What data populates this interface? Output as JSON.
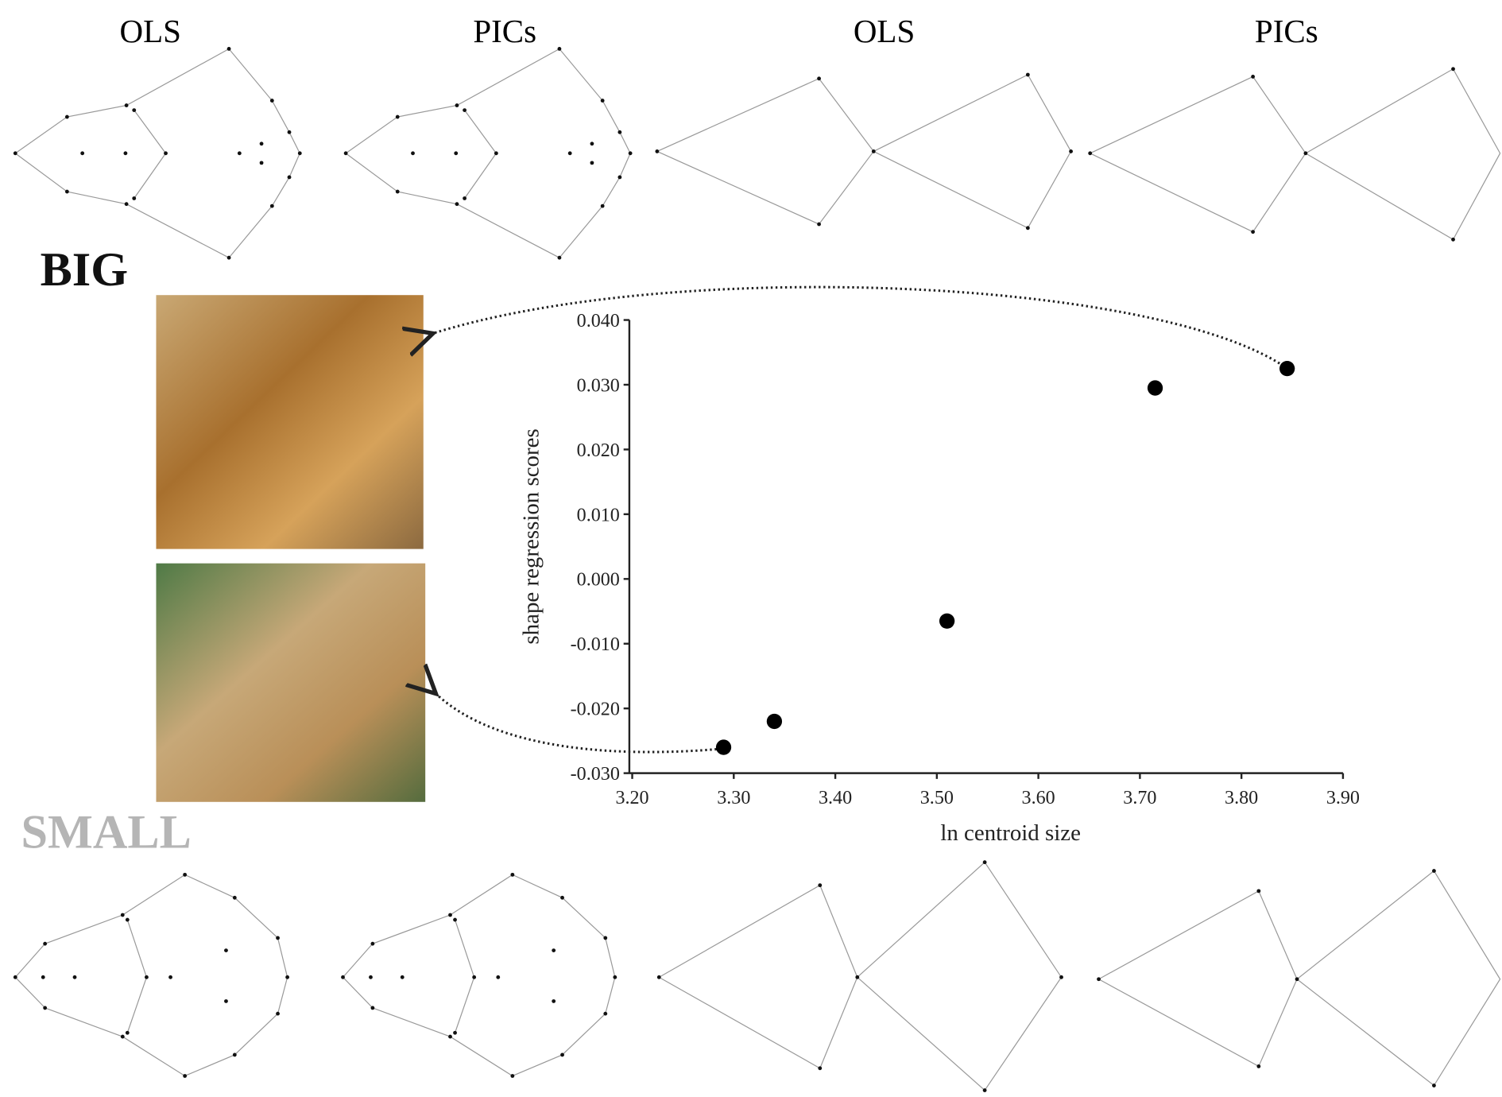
{
  "panel_labels": [
    "OLS",
    "PICs",
    "OLS",
    "PICs"
  ],
  "size_labels": {
    "big": "BIG",
    "small": "SMALL"
  },
  "chart_data": {
    "type": "scatter",
    "x_label": "ln centroid size",
    "y_label": "shape regression scores",
    "x": [
      3.29,
      3.34,
      3.51,
      3.715,
      3.845
    ],
    "values": [
      -0.026,
      -0.022,
      -0.0065,
      0.0295,
      0.0325
    ],
    "color": "#000000",
    "xlim": [
      3.2,
      3.9
    ],
    "xticks": [
      {
        "value": 3.2,
        "label": "3.20"
      },
      {
        "value": 3.3,
        "label": "3.30"
      },
      {
        "value": 3.4,
        "label": "3.40"
      },
      {
        "value": 3.5,
        "label": "3.50"
      },
      {
        "value": 3.6,
        "label": "3.60"
      },
      {
        "value": 3.7,
        "label": "3.70"
      },
      {
        "value": 3.8,
        "label": "3.80"
      },
      {
        "value": 3.9,
        "label": "3.90"
      }
    ],
    "ylim": [
      -0.03,
      0.04
    ],
    "yticks": [
      {
        "value": -0.03,
        "label": "-0.030"
      },
      {
        "value": -0.02,
        "label": "-0.020"
      },
      {
        "value": -0.01,
        "label": "-0.010"
      },
      {
        "value": 0,
        "label": "0.000"
      },
      {
        "value": 0.01,
        "label": "0.010"
      },
      {
        "value": 0.02,
        "label": "0.020"
      },
      {
        "value": 0.03,
        "label": "0.030"
      },
      {
        "value": 0.04,
        "label": "0.040"
      }
    ]
  }
}
